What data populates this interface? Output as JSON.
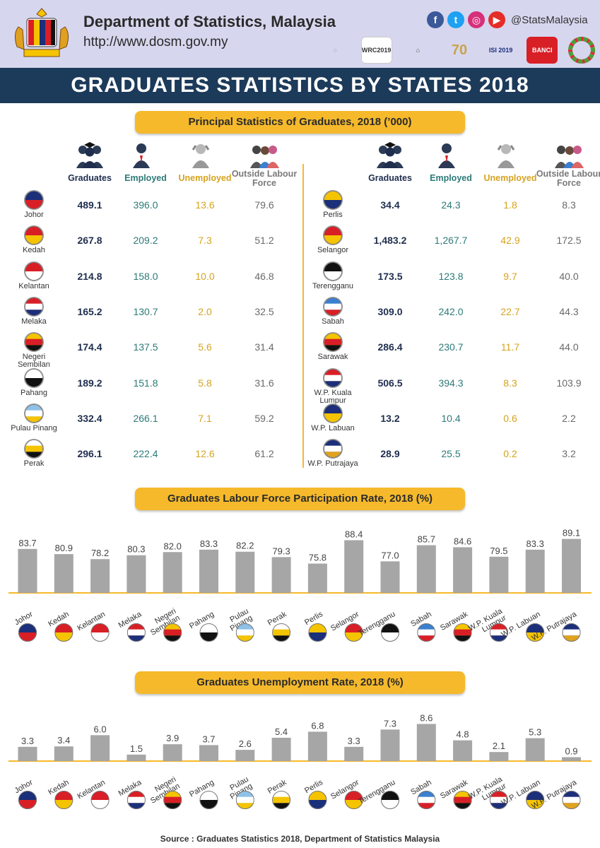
{
  "header": {
    "org_title": "Department of Statistics, Malaysia",
    "org_url": "http://www.dosm.gov.my",
    "social_handle": "@StatsMalaysia",
    "social_icons": [
      "facebook-icon",
      "twitter-icon",
      "instagram-icon",
      "youtube-icon"
    ],
    "event_logos": [
      "WRC2019",
      "ISI 2019",
      "BANCI"
    ]
  },
  "banner_title": "GRADUATES STATISTICS BY STATES 2018",
  "table": {
    "title": "Principal Statistics of Graduates, 2018 (’000)",
    "columns": [
      "Graduates",
      "Employed",
      "Unemployed",
      "Outside Labour Force"
    ],
    "left_rows": [
      {
        "state": "Johor",
        "graduates": "489.1",
        "employed": "396.0",
        "unemployed": "13.6",
        "outside": "79.6"
      },
      {
        "state": "Kedah",
        "graduates": "267.8",
        "employed": "209.2",
        "unemployed": "7.3",
        "outside": "51.2"
      },
      {
        "state": "Kelantan",
        "graduates": "214.8",
        "employed": "158.0",
        "unemployed": "10.0",
        "outside": "46.8"
      },
      {
        "state": "Melaka",
        "graduates": "165.2",
        "employed": "130.7",
        "unemployed": "2.0",
        "outside": "32.5"
      },
      {
        "state": "Negeri Sembilan",
        "graduates": "174.4",
        "employed": "137.5",
        "unemployed": "5.6",
        "outside": "31.4"
      },
      {
        "state": "Pahang",
        "graduates": "189.2",
        "employed": "151.8",
        "unemployed": "5.8",
        "outside": "31.6"
      },
      {
        "state": "Pulau Pinang",
        "graduates": "332.4",
        "employed": "266.1",
        "unemployed": "7.1",
        "outside": "59.2"
      },
      {
        "state": "Perak",
        "graduates": "296.1",
        "employed": "222.4",
        "unemployed": "12.6",
        "outside": "61.2"
      }
    ],
    "right_rows": [
      {
        "state": "Perlis",
        "graduates": "34.4",
        "employed": "24.3",
        "unemployed": "1.8",
        "outside": "8.3"
      },
      {
        "state": "Selangor",
        "graduates": "1,483.2",
        "employed": "1,267.7",
        "unemployed": "42.9",
        "outside": "172.5"
      },
      {
        "state": "Terengganu",
        "graduates": "173.5",
        "employed": "123.8",
        "unemployed": "9.7",
        "outside": "40.0"
      },
      {
        "state": "Sabah",
        "graduates": "309.0",
        "employed": "242.0",
        "unemployed": "22.7",
        "outside": "44.3"
      },
      {
        "state": "Sarawak",
        "graduates": "286.4",
        "employed": "230.7",
        "unemployed": "11.7",
        "outside": "44.0"
      },
      {
        "state": "W.P. Kuala Lumpur",
        "graduates": "506.5",
        "employed": "394.3",
        "unemployed": "8.3",
        "outside": "103.9"
      },
      {
        "state": "W.P. Labuan",
        "graduates": "13.2",
        "employed": "10.4",
        "unemployed": "0.6",
        "outside": "2.2"
      },
      {
        "state": "W.P. Putrajaya",
        "graduates": "28.9",
        "employed": "25.5",
        "unemployed": "0.2",
        "outside": "3.2"
      }
    ]
  },
  "chart_data": [
    {
      "type": "bar",
      "title": "Graduates Labour Force Participation Rate, 2018 (%)",
      "categories": [
        "Johor",
        "Kedah",
        "Kelantan",
        "Melaka",
        "Negeri Sembilan",
        "Pahang",
        "Pulau Pinang",
        "Perak",
        "Perlis",
        "Selangor",
        "Terengganu",
        "Sabah",
        "Sarawak",
        "W.P. Kuala Lumpur",
        "W.P. Labuan",
        "W.P. Putrajaya"
      ],
      "values": [
        83.7,
        80.9,
        78.2,
        80.3,
        82.0,
        83.3,
        82.2,
        79.3,
        75.8,
        88.4,
        77.0,
        85.7,
        84.6,
        79.5,
        83.3,
        89.1
      ],
      "value_labels": [
        "83.7",
        "80.9",
        "78.2",
        "80.3",
        "82.0",
        "83.3",
        "82.2",
        "79.3",
        "75.8",
        "88.4",
        "77.0",
        "85.7",
        "84.6",
        "79.5",
        "83.3",
        "89.1"
      ],
      "bar_color": "#a6a6a6",
      "axis_color": "#f5b92b"
    },
    {
      "type": "bar",
      "title": "Graduates Unemployment Rate, 2018 (%)",
      "categories": [
        "Johor",
        "Kedah",
        "Kelantan",
        "Melaka",
        "Negeri Sembilan",
        "Pahang",
        "Pulau Pinang",
        "Perak",
        "Perlis",
        "Selangor",
        "Terengganu",
        "Sabah",
        "Sarawak",
        "W.P. Kuala Lumpur",
        "W.P. Labuan",
        "W.P. Putrajaya"
      ],
      "values": [
        3.3,
        3.4,
        6.0,
        1.5,
        3.9,
        3.7,
        2.6,
        5.4,
        6.8,
        3.3,
        7.3,
        8.6,
        4.8,
        2.1,
        5.3,
        0.9
      ],
      "value_labels": [
        "3.3",
        "3.4",
        "6.0",
        "1.5",
        "3.9",
        "3.7",
        "2.6",
        "5.4",
        "6.8",
        "3.3",
        "7.3",
        "8.6",
        "4.8",
        "2.1",
        "5.3",
        "0.9"
      ],
      "bar_color": "#a6a6a6",
      "axis_color": "#f5b92b"
    }
  ],
  "state_flags": {
    "Johor": [
      "#1b2f7a",
      "#d91f26"
    ],
    "Kedah": [
      "#d91f26",
      "#f5c400"
    ],
    "Kelantan": [
      "#d91f26",
      "#ffffff"
    ],
    "Melaka": [
      "#d91f26",
      "#ffffff",
      "#1b2f7a"
    ],
    "Negeri Sembilan": [
      "#f5c400",
      "#d91f26",
      "#111111"
    ],
    "Pahang": [
      "#ffffff",
      "#111111"
    ],
    "Pulau Pinang": [
      "#8fc1e8",
      "#ffffff",
      "#f5c400"
    ],
    "Perak": [
      "#ffffff",
      "#f5c400",
      "#111111"
    ],
    "Perlis": [
      "#f5c400",
      "#1b2f7a"
    ],
    "Selangor": [
      "#d91f26",
      "#f5c400"
    ],
    "Terengganu": [
      "#111111",
      "#ffffff"
    ],
    "Sabah": [
      "#3b7fcf",
      "#ffffff",
      "#d91f26"
    ],
    "Sarawak": [
      "#f5c400",
      "#d91f26",
      "#111111"
    ],
    "W.P. Kuala Lumpur": [
      "#d91f26",
      "#ffffff",
      "#1b2f7a"
    ],
    "W.P. Labuan": [
      "#1b2f7a",
      "#f5c400"
    ],
    "W.P. Putrajaya": [
      "#1b2f7a",
      "#ffffff",
      "#e1a31e"
    ]
  },
  "source": "Source : Graduates Statistics 2018, Department of Statistics Malaysia"
}
